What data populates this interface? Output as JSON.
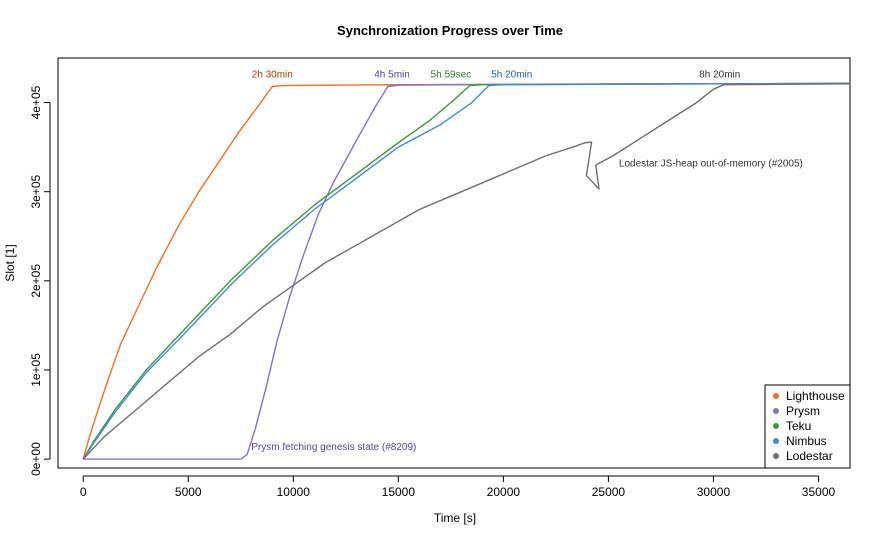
{
  "chart_data": {
    "type": "line",
    "title": "Synchronization Progress over Time",
    "xlabel": "Time [s]",
    "ylabel": "Slot [1]",
    "xlim": [
      -1200,
      36500
    ],
    "ylim": [
      -10000,
      450000
    ],
    "x_ticks": [
      0,
      5000,
      10000,
      15000,
      20000,
      25000,
      30000,
      35000
    ],
    "x_tick_labels": [
      "0",
      "5000",
      "10000",
      "15000",
      "20000",
      "25000",
      "30000",
      "35000"
    ],
    "y_ticks": [
      0,
      100000,
      200000,
      300000,
      400000
    ],
    "y_tick_labels": [
      "0e+00",
      "1e+05",
      "2e+05",
      "3e+05",
      "4e+05"
    ],
    "grid": false,
    "legend_position": "bottom-right",
    "series": [
      {
        "name": "Lighthouse",
        "color": "#F36F21",
        "points": [
          [
            0,
            0
          ],
          [
            300,
            25000
          ],
          [
            700,
            55000
          ],
          [
            1200,
            90000
          ],
          [
            1800,
            130000
          ],
          [
            2500,
            165000
          ],
          [
            3500,
            215000
          ],
          [
            4500,
            260000
          ],
          [
            5500,
            300000
          ],
          [
            6500,
            335000
          ],
          [
            7500,
            370000
          ],
          [
            8300,
            395000
          ],
          [
            9000,
            418000
          ],
          [
            9500,
            419000
          ],
          [
            12000,
            419500
          ],
          [
            15000,
            420000
          ],
          [
            20000,
            420500
          ],
          [
            25000,
            421000
          ],
          [
            30000,
            421000
          ],
          [
            36500,
            421500
          ]
        ]
      },
      {
        "name": "Prysm",
        "color": "#8A70C4",
        "points": [
          [
            0,
            0
          ],
          [
            1000,
            0
          ],
          [
            3000,
            0
          ],
          [
            5000,
            0
          ],
          [
            7500,
            0
          ],
          [
            7800,
            5000
          ],
          [
            8200,
            35000
          ],
          [
            8700,
            80000
          ],
          [
            9200,
            130000
          ],
          [
            9800,
            180000
          ],
          [
            10500,
            230000
          ],
          [
            11200,
            275000
          ],
          [
            11900,
            310000
          ],
          [
            12600,
            340000
          ],
          [
            13300,
            370000
          ],
          [
            13900,
            395000
          ],
          [
            14500,
            418000
          ],
          [
            15000,
            419500
          ],
          [
            18000,
            420000
          ],
          [
            22000,
            420500
          ],
          [
            30000,
            421000
          ],
          [
            36500,
            421500
          ]
        ]
      },
      {
        "name": "Teku",
        "color": "#3A9A3A",
        "points": [
          [
            0,
            0
          ],
          [
            500,
            20000
          ],
          [
            1500,
            55000
          ],
          [
            3000,
            100000
          ],
          [
            5000,
            150000
          ],
          [
            7000,
            200000
          ],
          [
            9000,
            245000
          ],
          [
            11000,
            285000
          ],
          [
            13000,
            320000
          ],
          [
            15000,
            355000
          ],
          [
            16500,
            380000
          ],
          [
            17500,
            400000
          ],
          [
            18400,
            419000
          ],
          [
            19000,
            420000
          ],
          [
            24000,
            420500
          ],
          [
            30000,
            421000
          ],
          [
            36500,
            421500
          ]
        ]
      },
      {
        "name": "Nimbus",
        "color": "#3F8FCB",
        "points": [
          [
            0,
            0
          ],
          [
            500,
            18000
          ],
          [
            1500,
            52000
          ],
          [
            3000,
            97000
          ],
          [
            5000,
            145000
          ],
          [
            7000,
            195000
          ],
          [
            9000,
            240000
          ],
          [
            11000,
            280000
          ],
          [
            13000,
            315000
          ],
          [
            15000,
            350000
          ],
          [
            17000,
            375000
          ],
          [
            18500,
            400000
          ],
          [
            19300,
            419000
          ],
          [
            20000,
            420000
          ],
          [
            25000,
            420500
          ],
          [
            30000,
            421000
          ],
          [
            36500,
            421500
          ]
        ]
      },
      {
        "name": "Lodestar",
        "color": "#6E6E6E",
        "points": [
          [
            0,
            0
          ],
          [
            1000,
            25000
          ],
          [
            2500,
            55000
          ],
          [
            4000,
            85000
          ],
          [
            5500,
            115000
          ],
          [
            7000,
            140000
          ],
          [
            8500,
            170000
          ],
          [
            10000,
            195000
          ],
          [
            11500,
            220000
          ],
          [
            13000,
            240000
          ],
          [
            14500,
            260000
          ],
          [
            16000,
            280000
          ],
          [
            17500,
            295000
          ],
          [
            19000,
            310000
          ],
          [
            20500,
            325000
          ],
          [
            22000,
            340000
          ],
          [
            23300,
            350000
          ],
          [
            23900,
            355000
          ],
          [
            24200,
            355500
          ],
          [
            23950,
            318000
          ],
          [
            24550,
            303000
          ],
          [
            24400,
            330000
          ],
          [
            25200,
            340000
          ],
          [
            26200,
            355000
          ],
          [
            27200,
            370000
          ],
          [
            28200,
            385000
          ],
          [
            29200,
            400000
          ],
          [
            30000,
            415000
          ],
          [
            30500,
            420000
          ],
          [
            33000,
            420500
          ],
          [
            36500,
            421000
          ]
        ]
      }
    ],
    "annotations": [
      {
        "text": "2h 30min",
        "x": 9000,
        "y": 428000,
        "color": "#B33C00",
        "anchor": "middle"
      },
      {
        "text": "4h 5min",
        "x": 14700,
        "y": 428000,
        "color": "#5A3FA0",
        "anchor": "middle"
      },
      {
        "text": "5h 59sec",
        "x": 17500,
        "y": 428000,
        "color": "#2E7D32",
        "anchor": "middle"
      },
      {
        "text": "5h 20min",
        "x": 20400,
        "y": 428000,
        "color": "#1E64A8",
        "anchor": "middle"
      },
      {
        "text": "8h 20min",
        "x": 30300,
        "y": 428000,
        "color": "#333333",
        "anchor": "middle"
      },
      {
        "text": "Lodestar JS-heap out-of-memory (#2005)",
        "x": 25500,
        "y": 328000,
        "color": "#333333",
        "anchor": "start"
      },
      {
        "text": "Prysm fetching genesis state (#8209)",
        "x": 8000,
        "y": 10000,
        "color": "#5A3FA0",
        "anchor": "start"
      }
    ]
  }
}
